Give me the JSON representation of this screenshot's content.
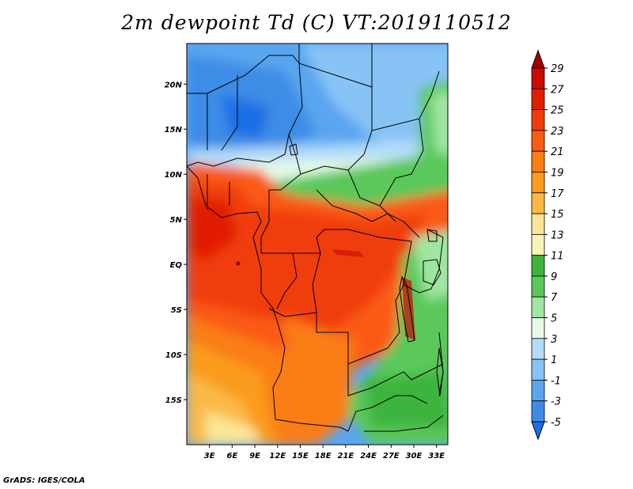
{
  "title": "2m dewpoint Td (C) VT:2019110512",
  "footer": "GrADS: IGES/COLA",
  "map": {
    "region": "Central Africa",
    "lat_labels": [
      "20N",
      "15N",
      "10N",
      "5N",
      "EQ",
      "5S",
      "10S",
      "15S"
    ],
    "lon_labels": [
      "3E",
      "6E",
      "9E",
      "12E",
      "15E",
      "18E",
      "21E",
      "24E",
      "27E",
      "30E",
      "33E"
    ],
    "lat_values": [
      20,
      15,
      10,
      5,
      0,
      -5,
      -10,
      -15
    ],
    "lon_values": [
      3,
      6,
      9,
      12,
      15,
      18,
      21,
      24,
      27,
      30,
      33
    ],
    "lon_range": [
      0,
      34.5
    ],
    "lat_range": [
      -20,
      24.5
    ]
  },
  "colorbar": {
    "labels": [
      "29",
      "27",
      "25",
      "23",
      "21",
      "19",
      "17",
      "15",
      "13",
      "11",
      "9",
      "7",
      "5",
      "3",
      "1",
      "-1",
      "-3",
      "-5"
    ],
    "colors": [
      "#a50000",
      "#c80a00",
      "#e11e00",
      "#f03c0a",
      "#fa5a14",
      "#fa7d14",
      "#fa9b1e",
      "#fab946",
      "#fae696",
      "#f5f5b4",
      "#3cb43c",
      "#5ac85a",
      "#a0e6a0",
      "#e6fae6",
      "#b4dcfa",
      "#87c3f5",
      "#5aa5f0",
      "#3c8ce6",
      "#1e6ee6"
    ]
  }
}
